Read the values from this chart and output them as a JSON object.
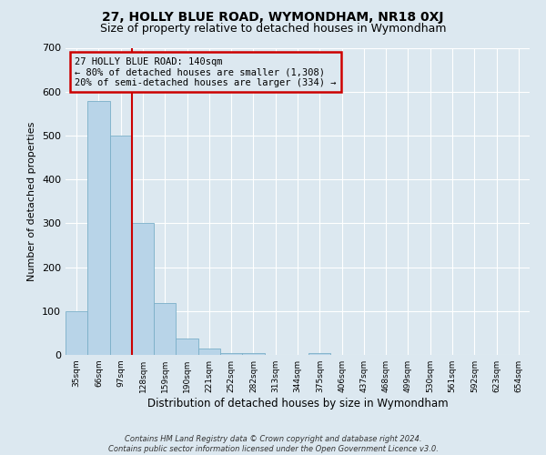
{
  "title": "27, HOLLY BLUE ROAD, WYMONDHAM, NR18 0XJ",
  "subtitle": "Size of property relative to detached houses in Wymondham",
  "xlabel": "Distribution of detached houses by size in Wymondham",
  "ylabel": "Number of detached properties",
  "bar_color": "#b8d4e8",
  "bar_edge_color": "#7aafc8",
  "background_color": "#dce8f0",
  "grid_color": "#ffffff",
  "annotation_box_color": "#cc0000",
  "vline_color": "#cc0000",
  "bin_labels": [
    "35sqm",
    "66sqm",
    "97sqm",
    "128sqm",
    "159sqm",
    "190sqm",
    "221sqm",
    "252sqm",
    "282sqm",
    "313sqm",
    "344sqm",
    "375sqm",
    "406sqm",
    "437sqm",
    "468sqm",
    "499sqm",
    "530sqm",
    "561sqm",
    "592sqm",
    "623sqm",
    "654sqm"
  ],
  "bar_heights": [
    100,
    578,
    500,
    300,
    118,
    37,
    14,
    5,
    5,
    0,
    0,
    5,
    0,
    0,
    0,
    0,
    0,
    0,
    0,
    0,
    0
  ],
  "annotation_line1": "27 HOLLY BLUE ROAD: 140sqm",
  "annotation_line2": "← 80% of detached houses are smaller (1,308)",
  "annotation_line3": "20% of semi-detached houses are larger (334) →",
  "vline_bin_index": 3,
  "ylim": [
    0,
    700
  ],
  "yticks": [
    0,
    100,
    200,
    300,
    400,
    500,
    600,
    700
  ],
  "footer_line1": "Contains HM Land Registry data © Crown copyright and database right 2024.",
  "footer_line2": "Contains public sector information licensed under the Open Government Licence v3.0."
}
